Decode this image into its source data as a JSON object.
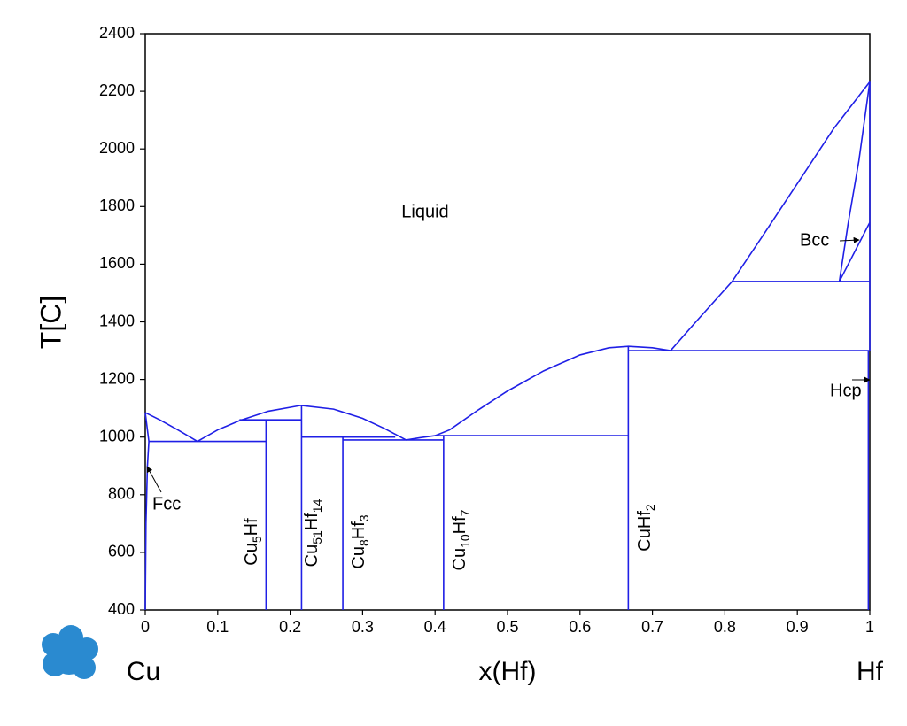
{
  "chart_data": {
    "type": "line",
    "ylabel": "T[C]",
    "xlabel": "x(Hf)",
    "left_label": "Cu",
    "right_label": "Hf",
    "xlim": [
      0,
      1
    ],
    "xticks": [
      0,
      0.1,
      0.2,
      0.3,
      0.4,
      0.5,
      0.6,
      0.7,
      0.8,
      0.9,
      1
    ],
    "ylim": [
      400,
      2400
    ],
    "yticks": [
      400,
      600,
      800,
      1000,
      1200,
      1400,
      1600,
      1800,
      2000,
      2200,
      2400
    ],
    "phase_labels": [
      "Liquid",
      "Fcc",
      "Bcc",
      "Hcp"
    ],
    "compound_labels": [
      [
        "Cu",
        "5",
        "Hf"
      ],
      [
        "Cu",
        "51",
        "Hf",
        "14"
      ],
      [
        "Cu",
        "8",
        "Hf",
        "3"
      ],
      [
        "Cu",
        "10",
        "Hf",
        "7"
      ],
      [
        "CuHf",
        "2"
      ]
    ],
    "logo": "P",
    "series": [
      {
        "color": "#1f1fe6",
        "x": [
          0,
          0.02,
          0.045,
          0.072
        ],
        "values": [
          1085,
          1060,
          1025,
          985
        ]
      },
      {
        "color": "#1f1fe6",
        "x": [
          0,
          0.005
        ],
        "values": [
          1085,
          985
        ]
      },
      {
        "color": "#1f1fe6",
        "x": [
          0.005,
          0.003,
          0.001,
          0
        ],
        "values": [
          985,
          900,
          700,
          400
        ]
      },
      {
        "color": "#1f1fe6",
        "x": [
          0.005,
          0.1667
        ],
        "values": [
          985,
          985
        ]
      },
      {
        "color": "#1f1fe6",
        "x": [
          0.072,
          0.1,
          0.13,
          0.17,
          0.215,
          0.26,
          0.3,
          0.33,
          0.36
        ],
        "values": [
          985,
          1025,
          1057,
          1090,
          1110,
          1097,
          1065,
          1030,
          990
        ]
      },
      {
        "color": "#1f1fe6",
        "x": [
          0.13,
          0.2157
        ],
        "values": [
          1060,
          1060
        ]
      },
      {
        "color": "#1f1fe6",
        "x": [
          0.1667,
          0.1667
        ],
        "values": [
          400,
          1060
        ]
      },
      {
        "color": "#1f1fe6",
        "x": [
          0.2157,
          0.2157
        ],
        "values": [
          400,
          1110
        ]
      },
      {
        "color": "#1f1fe6",
        "x": [
          0.2157,
          0.345
        ],
        "values": [
          1000,
          1000
        ]
      },
      {
        "color": "#1f1fe6",
        "x": [
          0.2727,
          0.2727
        ],
        "values": [
          400,
          1000
        ]
      },
      {
        "color": "#1f1fe6",
        "x": [
          0.2727,
          0.4118
        ],
        "values": [
          990,
          990
        ]
      },
      {
        "color": "#1f1fe6",
        "x": [
          0.4118,
          0.4118
        ],
        "values": [
          400,
          1005
        ]
      },
      {
        "color": "#1f1fe6",
        "x": [
          0.4,
          0.6667
        ],
        "values": [
          1005,
          1005
        ]
      },
      {
        "color": "#1f1fe6",
        "x": [
          0.36,
          0.38,
          0.4,
          0.42,
          0.46,
          0.5,
          0.55,
          0.6,
          0.64,
          0.667,
          0.7,
          0.725
        ],
        "values": [
          990,
          998,
          1005,
          1025,
          1095,
          1160,
          1230,
          1285,
          1310,
          1315,
          1310,
          1300
        ]
      },
      {
        "color": "#1f1fe6",
        "x": [
          0.6667,
          0.6667
        ],
        "values": [
          400,
          1315
        ]
      },
      {
        "color": "#1f1fe6",
        "x": [
          0.6667,
          1
        ],
        "values": [
          1300,
          1300
        ]
      },
      {
        "color": "#1f1fe6",
        "x": [
          0.725,
          0.76,
          0.81,
          0.85,
          0.9,
          0.95,
          1
        ],
        "values": [
          1300,
          1400,
          1540,
          1690,
          1880,
          2070,
          2233
        ]
      },
      {
        "color": "#1f1fe6",
        "x": [
          0.81,
          1
        ],
        "values": [
          1540,
          1540
        ]
      },
      {
        "color": "#1f1fe6",
        "x": [
          0.958,
          0.97,
          0.985,
          1
        ],
        "values": [
          1540,
          1740,
          1960,
          2233
        ]
      },
      {
        "color": "#1f1fe6",
        "x": [
          0.958,
          1
        ],
        "values": [
          1540,
          1745
        ]
      },
      {
        "color": "#1f1fe6",
        "x": [
          0.998,
          0.998
        ],
        "values": [
          400,
          1300
        ]
      },
      {
        "color": "#1f1fe6",
        "x": [
          1,
          1
        ],
        "values": [
          1300,
          2233
        ]
      }
    ]
  }
}
